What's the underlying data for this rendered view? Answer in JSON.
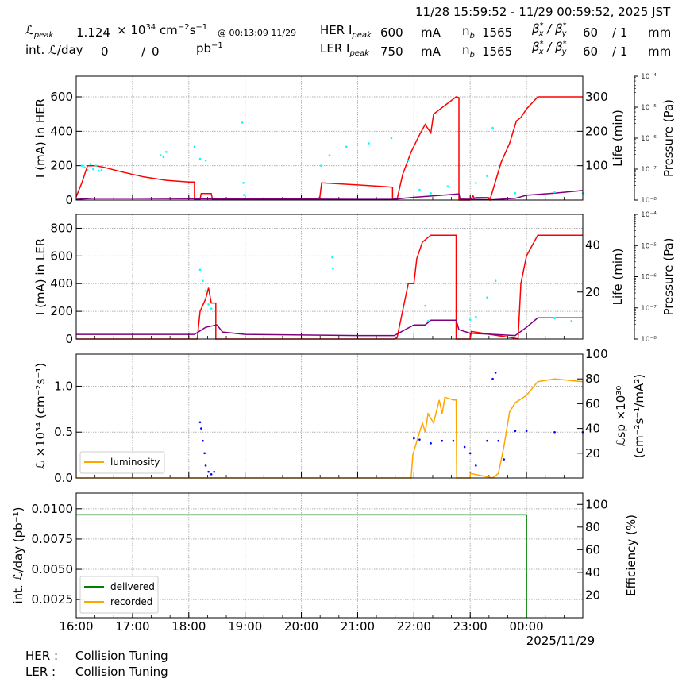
{
  "header": {
    "time_range": "11/28 15:59:52 - 11/29 00:59:52, 2025 JST",
    "lpeak_label": "ℒ",
    "lpeak_sub": "peak",
    "lpeak_value": "1.124",
    "lpeak_unit_prefix": "× 10",
    "lpeak_exp": "34",
    "lpeak_unit_cm": " cm",
    "lpeak_unit_cm_exp": "−2",
    "lpeak_unit_s": "s",
    "lpeak_unit_s_exp": "−1",
    "lpeak_time": "@ 00:13:09 11/29",
    "intl_label": "int. ℒ/day",
    "intl_delivered": "0",
    "intl_sep": "/",
    "intl_recorded": "0",
    "intl_unit": "pb",
    "intl_unit_exp": "−1",
    "her": {
      "label": "HER I",
      "label_sub": "peak",
      "ipeak": "600",
      "ipeak_unit": "mA",
      "nb_label": "n",
      "nb_sub": "b",
      "nb": "1565",
      "beta_label": "β*x / β*y",
      "beta_x": "60",
      "beta_y": "/ 1",
      "beta_unit": "mm"
    },
    "ler": {
      "label": "LER I",
      "label_sub": "peak",
      "ipeak": "750",
      "ipeak_unit": "mA",
      "nb_label": "n",
      "nb_sub": "b",
      "nb": "1565",
      "beta_label": "β*x / β*y",
      "beta_x": "60",
      "beta_y": "/ 1",
      "beta_unit": "mm"
    }
  },
  "colors": {
    "current": "#ff0000",
    "life": "#800080",
    "pressure": "#00ffff",
    "luminosity": "#ffa500",
    "specific_lumi": "#0000ff",
    "delivered": "#008000",
    "recorded": "#ffa500",
    "grid": "#b0b0b0"
  },
  "x_axis": {
    "ticks": [
      "16:00",
      "17:00",
      "18:00",
      "19:00",
      "20:00",
      "21:00",
      "22:00",
      "23:00",
      "00:00"
    ],
    "date_label": "2025/11/29",
    "start_hour": 16.0,
    "end_hour": 25.0
  },
  "footer": {
    "her_label": "HER :",
    "her_status": "Collision Tuning",
    "ler_label": "LER :",
    "ler_status": "Collision Tuning"
  },
  "chart_data": [
    {
      "id": "her",
      "type": "line",
      "title": "",
      "ylabel": "I (mA) in HER",
      "ylabel_right": "Life (min)",
      "ylabel_pressure": "Pressure (Pa)",
      "ylim": [
        0,
        720
      ],
      "yticks": [
        0,
        200,
        400,
        600
      ],
      "ylim_right": [
        0,
        360
      ],
      "yticks_right": [
        100,
        200,
        300
      ],
      "pressure_ticks": [
        "10⁻⁴",
        "10⁻⁵",
        "10⁻⁶",
        "10⁻⁷",
        "10⁻⁸"
      ],
      "series": [
        {
          "name": "HER current",
          "axis": "left",
          "color": "#ff0000",
          "x": [
            16.0,
            16.1,
            16.2,
            16.35,
            16.5,
            16.8,
            17.2,
            17.6,
            18.0,
            18.1,
            18.1,
            18.2,
            18.22,
            18.4,
            18.42,
            19.0,
            20.3,
            20.33,
            20.36,
            21.0,
            21.5,
            21.62,
            21.62,
            21.7,
            21.8,
            21.95,
            22.1,
            22.2,
            22.3,
            22.35,
            22.75,
            22.8,
            22.8,
            23.0,
            23.05,
            23.07,
            23.1,
            23.3,
            23.35,
            23.55,
            23.7,
            23.82,
            23.9,
            24.0,
            24.2,
            24.2,
            25.0
          ],
          "y": [
            20,
            100,
            200,
            200,
            190,
            165,
            135,
            115,
            105,
            105,
            5,
            5,
            38,
            38,
            5,
            5,
            5,
            20,
            100,
            88,
            78,
            75,
            5,
            5,
            150,
            280,
            380,
            440,
            390,
            500,
            600,
            595,
            0,
            0,
            25,
            10,
            15,
            15,
            0,
            220,
            330,
            460,
            480,
            530,
            600,
            600,
            600
          ]
        },
        {
          "name": "HER lifetime",
          "axis": "right",
          "color": "#800080",
          "x": [
            16.0,
            16.3,
            17.0,
            18.0,
            19.0,
            20.0,
            21.0,
            21.62,
            22.0,
            22.5,
            22.8,
            22.82,
            23.4,
            23.8,
            24.0,
            24.5,
            25.0
          ],
          "y": [
            2,
            5,
            5,
            4,
            3,
            3,
            2,
            2,
            8,
            14,
            18,
            3,
            1,
            5,
            14,
            20,
            28
          ]
        },
        {
          "name": "HER pressure",
          "axis": "pressure",
          "color": "#00ffff",
          "marker": "point",
          "x": [
            16.1,
            16.15,
            16.2,
            16.25,
            16.3,
            16.35,
            16.4,
            16.45,
            17.5,
            17.55,
            17.6,
            18.1,
            18.2,
            18.3,
            18.95,
            18.97,
            18.98,
            20.35,
            20.5,
            20.8,
            21.2,
            21.6,
            21.9,
            22.1,
            22.3,
            22.6,
            23.1,
            23.3,
            23.4,
            23.8,
            24.5,
            25.0
          ],
          "y": [
            200,
            190,
            175,
            210,
            180,
            200,
            170,
            175,
            260,
            250,
            280,
            310,
            240,
            230,
            450,
            100,
            30,
            200,
            260,
            310,
            330,
            360,
            230,
            60,
            40,
            80,
            100,
            140,
            420,
            40,
            45,
            40
          ]
        }
      ]
    },
    {
      "id": "ler",
      "type": "line",
      "ylabel": "I (mA) in LER",
      "ylabel_right": "Life (min)",
      "ylabel_pressure": "Pressure (Pa)",
      "ylim": [
        0,
        900
      ],
      "yticks": [
        0,
        200,
        400,
        600,
        800
      ],
      "ylim_right": [
        0,
        53
      ],
      "yticks_right": [
        20,
        40
      ],
      "pressure_ticks": [
        "10⁻⁴",
        "10⁻⁵",
        "10⁻⁶",
        "10⁻⁷",
        "10⁻⁸"
      ],
      "series": [
        {
          "name": "LER current",
          "axis": "left",
          "color": "#ff0000",
          "x": [
            16.0,
            18.15,
            18.2,
            18.3,
            18.35,
            18.4,
            18.48,
            18.48,
            21.65,
            21.7,
            21.9,
            22.0,
            22.05,
            22.15,
            22.3,
            22.75,
            22.75,
            23.0,
            23.02,
            23.1,
            23.8,
            23.85,
            23.9,
            24.0,
            24.2,
            25.0
          ],
          "y": [
            0,
            0,
            200,
            290,
            370,
            260,
            260,
            0,
            0,
            10,
            400,
            400,
            580,
            700,
            750,
            750,
            0,
            0,
            55,
            50,
            5,
            0,
            400,
            600,
            750,
            750
          ]
        },
        {
          "name": "LER lifetime",
          "axis": "right",
          "color": "#800080",
          "x": [
            16.0,
            18.1,
            18.3,
            18.5,
            18.6,
            19.0,
            21.0,
            21.65,
            22.0,
            22.2,
            22.3,
            22.75,
            22.8,
            23.0,
            23.8,
            24.0,
            24.2,
            25.0
          ],
          "y": [
            2,
            2,
            5,
            6,
            3,
            2,
            1.5,
            1.5,
            6,
            6,
            8,
            8,
            4,
            2.5,
            1.5,
            5,
            9,
            9
          ]
        },
        {
          "name": "LER pressure",
          "axis": "pressure",
          "color": "#00ffff",
          "marker": "point",
          "x": [
            18.2,
            18.25,
            18.3,
            18.35,
            18.4,
            20.55,
            20.56,
            22.2,
            22.25,
            23.0,
            23.1,
            23.3,
            23.45,
            24.5,
            24.8
          ],
          "y": [
            500,
            420,
            350,
            250,
            220,
            590,
            510,
            240,
            130,
            140,
            160,
            300,
            420,
            150,
            130
          ]
        }
      ]
    },
    {
      "id": "luminosity",
      "type": "line",
      "ylabel": "ℒ ×10³⁴ (cm⁻²s⁻¹)",
      "ylabel_right": "ℒsp ×10³⁰ (cm⁻²s⁻¹/mA²)",
      "ylim": [
        0,
        1.35
      ],
      "yticks": [
        0.0,
        0.5,
        1.0
      ],
      "ylim_right": [
        0,
        100
      ],
      "yticks_right": [
        20,
        40,
        60,
        80,
        100
      ],
      "legend": [
        "luminosity"
      ],
      "series": [
        {
          "name": "luminosity",
          "axis": "left",
          "color": "#ffa500",
          "x": [
            16.0,
            21.95,
            21.98,
            22.05,
            22.15,
            22.2,
            22.25,
            22.35,
            22.45,
            22.5,
            22.55,
            22.7,
            22.75,
            22.76,
            23.0,
            23.0,
            23.4,
            23.5,
            23.6,
            23.7,
            23.8,
            24.0,
            24.2,
            24.5,
            25.0
          ],
          "y": [
            0,
            0,
            0.25,
            0.4,
            0.6,
            0.5,
            0.7,
            0.6,
            0.85,
            0.7,
            0.88,
            0.85,
            0.85,
            0,
            0,
            0.05,
            0,
            0.05,
            0.35,
            0.72,
            0.82,
            0.9,
            1.05,
            1.08,
            1.05
          ]
        },
        {
          "name": "specific luminosity",
          "axis": "right",
          "color": "#0000ff",
          "marker": "point",
          "x": [
            18.2,
            18.22,
            18.25,
            18.28,
            18.3,
            18.35,
            18.4,
            18.45,
            22.0,
            22.1,
            22.3,
            22.5,
            22.7,
            22.9,
            23.0,
            23.1,
            23.3,
            23.4,
            23.45,
            23.5,
            23.6,
            23.8,
            24.0,
            24.5,
            25.0
          ],
          "y": [
            45,
            40,
            30,
            20,
            10,
            5,
            3,
            5,
            32,
            31,
            28,
            30,
            30,
            25,
            20,
            10,
            30,
            80,
            85,
            30,
            15,
            38,
            38,
            37,
            37
          ]
        }
      ]
    },
    {
      "id": "integrated",
      "type": "line",
      "ylabel": "int. ℒ/day (pb⁻¹)",
      "ylabel_right": "Efficiency (%)",
      "ylim": [
        0.001,
        0.0113
      ],
      "yticks": [
        0.0025,
        0.005,
        0.0075,
        0.01
      ],
      "ytick_labels": [
        "0.0025",
        "0.0050",
        "0.0075",
        "0.0100"
      ],
      "ylim_right": [
        0,
        110
      ],
      "yticks_right": [
        20,
        40,
        60,
        80,
        100
      ],
      "legend": [
        "delivered",
        "recorded"
      ],
      "series": [
        {
          "name": "delivered",
          "axis": "left",
          "color": "#008000",
          "x": [
            16.0,
            24.0,
            24.0
          ],
          "y": [
            0.0095,
            0.0095,
            0.001
          ]
        },
        {
          "name": "recorded",
          "axis": "left",
          "color": "#ffa500",
          "x": [],
          "y": []
        }
      ]
    }
  ]
}
